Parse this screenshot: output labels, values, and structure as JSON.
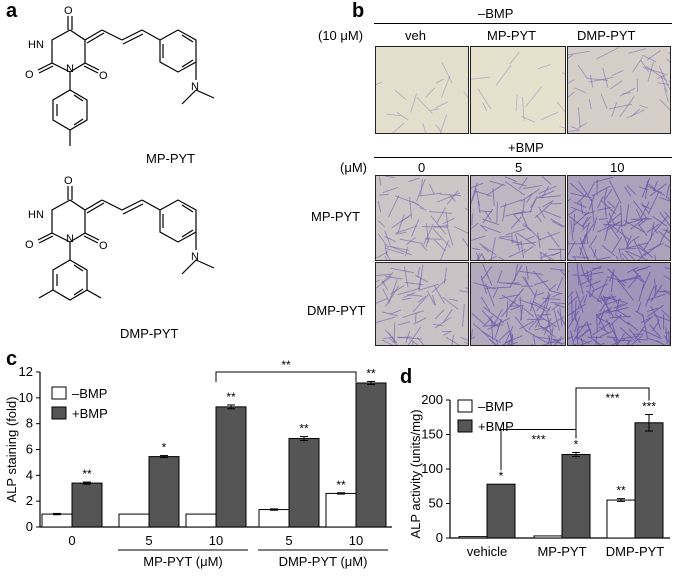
{
  "panel_labels": {
    "a": "a",
    "b": "b",
    "c": "c",
    "d": "d"
  },
  "panel_a": {
    "compound1": "MP-PYT",
    "compound2": "DMP-PYT",
    "atoms": {
      "o": "O",
      "hn": "HN",
      "n": "N"
    }
  },
  "panel_b": {
    "minus_header": "–BMP",
    "plus_header": "+BMP",
    "conc_label_top": "(10 μM)",
    "conc_label_bottom": "(μM)",
    "top_columns": [
      "veh",
      "MP-PYT",
      "DMP-PYT"
    ],
    "bottom_columns": [
      "0",
      "5",
      "10"
    ],
    "row_labels": [
      "MP-PYT",
      "DMP-PYT"
    ],
    "stain_color": "#6a5aa8",
    "background_color": "#e9e4cf",
    "top_intensity": [
      0.05,
      0.03,
      0.25
    ],
    "bottom_intensity": [
      [
        0.35,
        0.55,
        0.8
      ],
      [
        0.4,
        0.7,
        0.95
      ]
    ]
  },
  "chart_data": [
    {
      "type": "bar",
      "panel": "c",
      "ylabel": "ALP staining (fold)",
      "ylim": [
        0,
        12
      ],
      "yticks": [
        "0",
        "2",
        "4",
        "6",
        "8",
        "10",
        "12"
      ],
      "tick_labels": [
        "0",
        "5",
        "10",
        "5",
        "10"
      ],
      "group_labels": [
        "MP-PYT (μM)",
        "DMP-PYT (μM)"
      ],
      "legend": [
        "–BMP",
        "+BMP"
      ],
      "legend_position": "top-left",
      "series": [
        {
          "name": "–BMP",
          "color": "#ffffff",
          "values": [
            1.0,
            1.0,
            1.0,
            1.35,
            2.6
          ],
          "errors": [
            0.05,
            0,
            0,
            0.05,
            0.05
          ],
          "sig": [
            "",
            "",
            "",
            "",
            "**"
          ]
        },
        {
          "name": "+BMP",
          "color": "#555555",
          "values": [
            3.4,
            5.45,
            9.3,
            6.85,
            11.15
          ],
          "errors": [
            0.08,
            0.08,
            0.15,
            0.15,
            0.12
          ],
          "sig": [
            "**",
            "*",
            "**",
            "**",
            "**"
          ]
        }
      ],
      "bracket": {
        "from": 2,
        "to": 4,
        "label": "**"
      }
    },
    {
      "type": "bar",
      "panel": "d",
      "ylabel": "ALP activity (units/mg)",
      "ylim": [
        0,
        200
      ],
      "yticks": [
        "0",
        "50",
        "100",
        "150",
        "200"
      ],
      "categories": [
        "vehicle",
        "MP-PYT",
        "DMP-PYT"
      ],
      "legend": [
        "–BMP",
        "+BMP"
      ],
      "legend_position": "top-left",
      "series": [
        {
          "name": "–BMP",
          "color": "#ffffff",
          "values": [
            2,
            3,
            55
          ],
          "errors": [
            0,
            0,
            2
          ],
          "sig": [
            "",
            "",
            "**"
          ]
        },
        {
          "name": "+BMP",
          "color": "#555555",
          "values": [
            78,
            121,
            167
          ],
          "errors": [
            0,
            3,
            12
          ],
          "sig": [
            "*",
            "*",
            "***"
          ]
        }
      ],
      "brackets": [
        {
          "from": 0,
          "to": 1,
          "label": "***"
        },
        {
          "from": 1,
          "to": 2,
          "label": "***"
        }
      ]
    }
  ]
}
